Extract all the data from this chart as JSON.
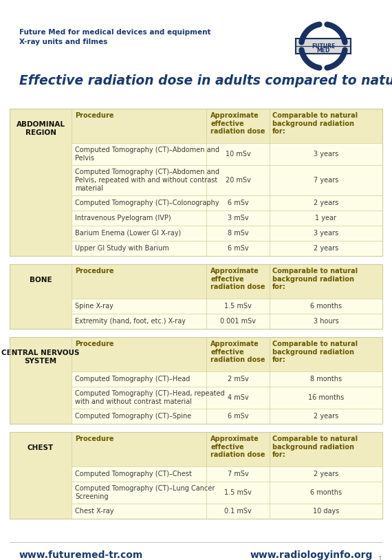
{
  "title": "Effective radiation dose in adults compared to natural radiation.",
  "header_line1": "Future Med for medical devices and equipment",
  "header_line2": "X-ray units and filmes",
  "footer_left": "www.futuremed-tr.com",
  "footer_right": "www.radiologyinfo.org",
  "bg_color": "#FFFFFF",
  "table_bg": "#FEFEE8",
  "header_row_bg": "#F0ECC0",
  "region_col_bg": "#F0ECC0",
  "col_header_color": "#6b5a00",
  "title_color": "#1a3a6e",
  "header_text_color": "#1a3a6e",
  "footer_color": "#1a3a6e",
  "border_color": "#cccc99",
  "body_text_color": "#3a3a3a",
  "region_text_color": "#111111",
  "logo_color": "#1a3060",
  "sections": [
    {
      "region": "ABDOMINAL\nREGION",
      "rows": [
        [
          "Computed Tomography (CT)–Abdomen and\nPelvis",
          "10 mSv",
          "3 years"
        ],
        [
          "Computed Tomography (CT)–Abdomen and\nPelvis, repeated with and without contrast\nmaterial",
          "20 mSv",
          "7 years"
        ],
        [
          "Computed Tomography (CT)–Colonography",
          "6 mSv",
          "2 years"
        ],
        [
          "Intravenous Pyelogram (IVP)",
          "3 mSv",
          "1 year"
        ],
        [
          "Barium Enema (Lower GI X-ray)",
          "8 mSv",
          "3 years"
        ],
        [
          "Upper GI Study with Barium",
          "6 mSv",
          "2 years"
        ]
      ]
    },
    {
      "region": "BONE",
      "rows": [
        [
          "Spine X-ray",
          "1.5 mSv",
          "6 months"
        ],
        [
          "Extremity (hand, foot, etc.) X-ray",
          "0.001 mSv",
          "3 hours"
        ]
      ]
    },
    {
      "region": "CENTRAL NERVOUS\nSYSTEM",
      "rows": [
        [
          "Computed Tomography (CT)–Head",
          "2 mSv",
          "8 months"
        ],
        [
          "Computed Tomography (CT)–Head, repeated\nwith and without contrast material",
          "4 mSv",
          "16 months"
        ],
        [
          "Computed Tomography (CT)–Spine",
          "6 mSv",
          "2 years"
        ]
      ]
    },
    {
      "region": "CHEST",
      "rows": [
        [
          "Computed Tomography (CT)–Chest",
          "7 mSv",
          "2 years"
        ],
        [
          "Computed Tomography (CT)–Lung Cancer\nScreening",
          "1.5 mSv",
          "6 months"
        ],
        [
          "Chest X-ray",
          "0.1 mSv",
          "10 days"
        ]
      ]
    }
  ],
  "col_headers": [
    "Procedure",
    "Approximate\neffective\nradiation dose",
    "Comparable to natural\nbackground radiation\nfor:"
  ]
}
